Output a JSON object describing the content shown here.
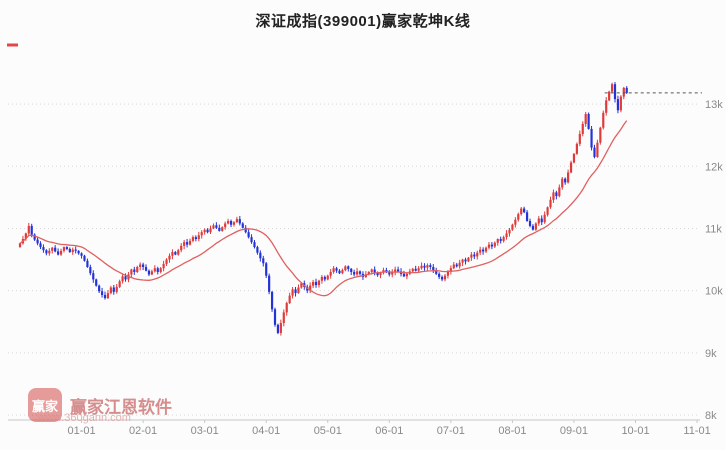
{
  "header": {
    "title": "深证成指(399001)赢家乾坤K线"
  },
  "watermark": {
    "logo_text": "赢家",
    "brand": "赢家江恩软件",
    "url": "www.360gann.com"
  },
  "chart_data": {
    "type": "candlestick",
    "title": "深证成指(399001)赢家乾坤K线",
    "grid": "horizontal-dotted",
    "legend_position": "none",
    "x_ticks": {
      "labels": [
        "01-01",
        "02-01",
        "03-01",
        "04-01",
        "05-01",
        "06-01",
        "07-01",
        "08-01",
        "09-01",
        "10-01",
        "11-01"
      ],
      "indices": [
        21,
        42,
        63,
        84,
        105,
        126,
        147,
        168,
        189,
        210,
        231
      ]
    },
    "x_index_max": 232,
    "y_ticks": {
      "labels": [
        "8k",
        "9k",
        "10k",
        "11k",
        "12k",
        "13k"
      ],
      "values": [
        8000,
        9000,
        10000,
        11000,
        12000,
        13000
      ]
    },
    "ylim": [
      8000,
      13950
    ],
    "ma_window": 20,
    "last_price": 13180,
    "closes": [
      10760,
      10830,
      10920,
      11040,
      10900,
      10820,
      10760,
      10700,
      10650,
      10600,
      10640,
      10690,
      10630,
      10580,
      10640,
      10700,
      10670,
      10620,
      10660,
      10640,
      10600,
      10560,
      10480,
      10380,
      10280,
      10180,
      10080,
      9990,
      9930,
      9880,
      9960,
      10050,
      9980,
      10060,
      10150,
      10230,
      10180,
      10260,
      10340,
      10300,
      10380,
      10420,
      10380,
      10320,
      10260,
      10310,
      10360,
      10300,
      10360,
      10430,
      10500,
      10560,
      10620,
      10580,
      10650,
      10720,
      10780,
      10740,
      10800,
      10860,
      10830,
      10890,
      10940,
      10980,
      10940,
      11000,
      11050,
      11010,
      10960,
      11020,
      11080,
      11120,
      11060,
      11100,
      11150,
      11080,
      11010,
      10940,
      10860,
      10780,
      10700,
      10610,
      10520,
      10440,
      10240,
      9980,
      9700,
      9450,
      9320,
      9480,
      9650,
      9800,
      9920,
      10020,
      9960,
      10050,
      10120,
      10060,
      10000,
      10080,
      10140,
      10090,
      10160,
      10220,
      10180,
      10240,
      10300,
      10360,
      10320,
      10280,
      10330,
      10390,
      10350,
      10300,
      10260,
      10310,
      10270,
      10220,
      10260,
      10300,
      10340,
      10290,
      10250,
      10290,
      10330,
      10300,
      10260,
      10300,
      10340,
      10310,
      10270,
      10230,
      10270,
      10310,
      10350,
      10320,
      10360,
      10400,
      10370,
      10410,
      10380,
      10330,
      10270,
      10220,
      10180,
      10240,
      10300,
      10360,
      10420,
      10390,
      10450,
      10500,
      10470,
      10530,
      10580,
      10550,
      10610,
      10660,
      10630,
      10690,
      10740,
      10710,
      10770,
      10830,
      10800,
      10860,
      10920,
      10980,
      11060,
      11140,
      11230,
      11320,
      11260,
      11120,
      11040,
      10980,
      11080,
      11160,
      11100,
      11220,
      11340,
      11460,
      11580,
      11520,
      11660,
      11800,
      11740,
      11900,
      12060,
      12200,
      12360,
      12520,
      12680,
      12840,
      12600,
      12300,
      12150,
      12380,
      12620,
      12860,
      13060,
      13200,
      13320,
      13080,
      12900,
      13120,
      13260,
      13180
    ],
    "colors": {
      "up": "#e03b3b",
      "down": "#2433d8",
      "ma": "#e06060",
      "grid": "#d8d8d8",
      "axis": "#c8c8c8",
      "tick_text": "#8a8a8a",
      "last_price_line": "#555555",
      "legend_marker": "#e04848"
    }
  }
}
